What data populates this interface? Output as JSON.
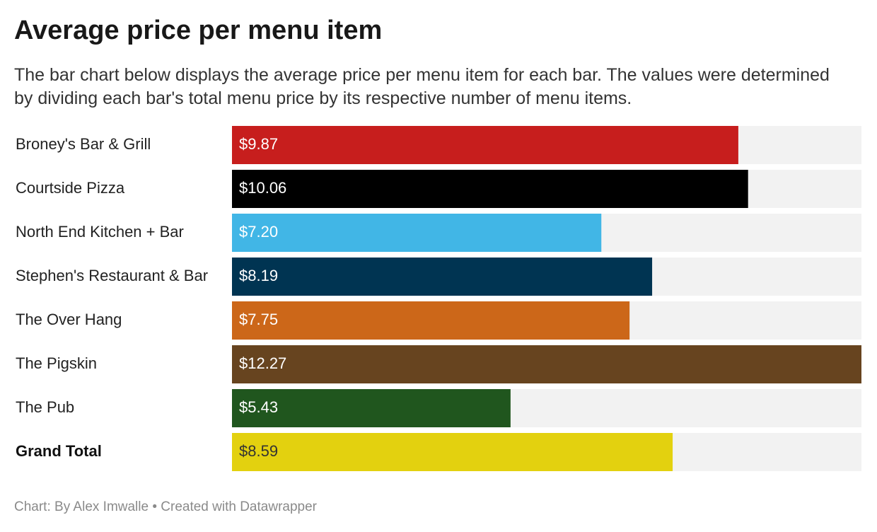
{
  "chart_data": {
    "type": "bar",
    "title": "Average price per menu item",
    "subtitle": "The bar chart below displays the average price per menu item for each bar. The values were determined by dividing each bar's total menu price by its respective number of menu items.",
    "categories": [
      "Broney's Bar & Grill",
      "Courtside Pizza",
      "North End Kitchen + Bar",
      "Stephen's Restaurant & Bar",
      "The Over Hang",
      "The Pigskin",
      "The Pub",
      "Grand Total"
    ],
    "values": [
      9.87,
      10.06,
      7.2,
      8.19,
      7.75,
      12.27,
      5.43,
      8.59
    ],
    "value_labels": [
      "$9.87",
      "$10.06",
      "$7.20",
      "$8.19",
      "$7.75",
      "$12.27",
      "$5.43",
      "$8.59"
    ],
    "colors": [
      "#c71e1d",
      "#000000",
      "#41b6e6",
      "#003452",
      "#cc6719",
      "#67441f",
      "#20561e",
      "#e3d10f"
    ],
    "track_color": "#f2f2f2",
    "xlim": [
      0,
      12.27
    ],
    "source": "Chart: By Alex Imwalle • Created with Datawrapper"
  }
}
